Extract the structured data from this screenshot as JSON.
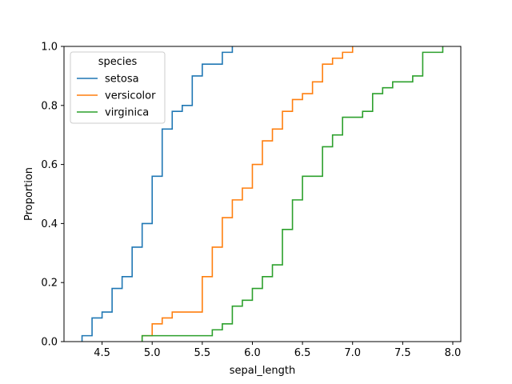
{
  "chart_data": {
    "type": "line",
    "subtype": "ecdf-step",
    "xlabel": "sepal_length",
    "ylabel": "Proportion",
    "xlim": [
      4.12,
      8.08
    ],
    "ylim": [
      0,
      1
    ],
    "xticks": [
      4.5,
      5.0,
      5.5,
      6.0,
      6.5,
      7.0,
      7.5,
      8.0
    ],
    "xtick_labels": [
      "4.5",
      "5.0",
      "5.5",
      "6.0",
      "6.5",
      "7.0",
      "7.5",
      "8.0"
    ],
    "yticks": [
      0,
      0.2,
      0.4,
      0.6,
      0.8,
      1.0
    ],
    "ytick_labels": [
      "0.0",
      "0.2",
      "0.4",
      "0.6",
      "0.8",
      "1.0"
    ],
    "grid": false,
    "legend": {
      "title": "species",
      "placement": "top-left"
    },
    "series": [
      {
        "name": "setosa",
        "color": "#1f77b4",
        "x": [
          4.3,
          4.4,
          4.5,
          4.6,
          4.7,
          4.8,
          4.9,
          5.0,
          5.1,
          5.2,
          5.3,
          5.4,
          5.5,
          5.7,
          5.8
        ],
        "y": [
          0.02,
          0.08,
          0.1,
          0.18,
          0.22,
          0.32,
          0.4,
          0.56,
          0.72,
          0.78,
          0.8,
          0.9,
          0.94,
          0.98,
          1.0
        ]
      },
      {
        "name": "versicolor",
        "color": "#ff7f0e",
        "x": [
          4.9,
          5.0,
          5.1,
          5.2,
          5.5,
          5.6,
          5.7,
          5.8,
          5.9,
          6.0,
          6.1,
          6.2,
          6.3,
          6.4,
          6.5,
          6.6,
          6.7,
          6.8,
          6.9,
          7.0
        ],
        "y": [
          0.02,
          0.06,
          0.08,
          0.1,
          0.22,
          0.32,
          0.42,
          0.48,
          0.52,
          0.6,
          0.68,
          0.72,
          0.78,
          0.82,
          0.84,
          0.88,
          0.94,
          0.96,
          0.98,
          1.0
        ]
      },
      {
        "name": "virginica",
        "color": "#2ca02c",
        "x": [
          4.9,
          5.6,
          5.7,
          5.8,
          5.9,
          6.0,
          6.1,
          6.2,
          6.3,
          6.4,
          6.5,
          6.7,
          6.8,
          6.9,
          7.1,
          7.2,
          7.3,
          7.4,
          7.6,
          7.7,
          7.9
        ],
        "y": [
          0.02,
          0.04,
          0.06,
          0.12,
          0.14,
          0.18,
          0.22,
          0.26,
          0.38,
          0.48,
          0.56,
          0.66,
          0.7,
          0.76,
          0.78,
          0.84,
          0.86,
          0.88,
          0.9,
          0.98,
          1.0
        ]
      }
    ]
  }
}
